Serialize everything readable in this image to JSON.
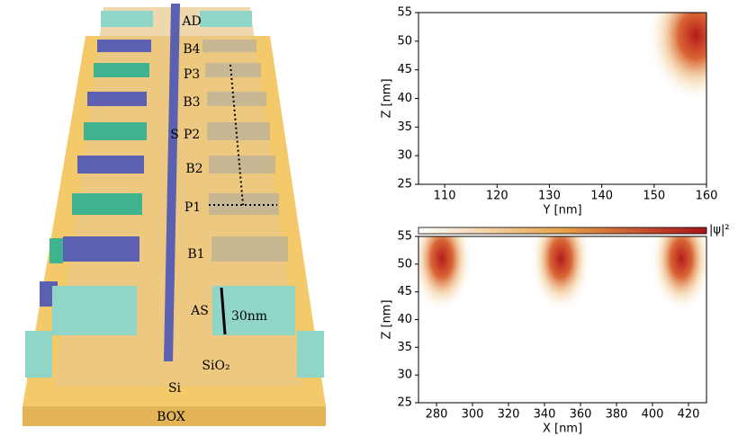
{
  "diagram": {
    "labels": [
      "AD",
      "B4",
      "P3",
      "B3",
      "S",
      "P2",
      "B2",
      "P1",
      "B1",
      "AS",
      "30nm",
      "SiO₂",
      "Si",
      "BOX"
    ]
  },
  "chart_data": [
    {
      "type": "heatmap",
      "xlabel": "Y [nm]",
      "ylabel": "Z [nm]",
      "xlim": [
        105,
        160
      ],
      "ylim": [
        25,
        55
      ],
      "xticks": [
        110,
        120,
        130,
        140,
        150,
        160
      ],
      "yticks": [
        25,
        30,
        35,
        40,
        45,
        50,
        55
      ],
      "peaks": {
        "x": [
          158
        ],
        "y": [
          51
        ]
      }
    },
    {
      "type": "heatmap",
      "xlabel": "X [nm]",
      "ylabel": "Z [nm]",
      "xlim": [
        270,
        430
      ],
      "ylim": [
        25,
        55
      ],
      "xticks": [
        280,
        300,
        320,
        340,
        360,
        380,
        400,
        420
      ],
      "yticks": [
        25,
        30,
        35,
        40,
        45,
        50,
        55
      ],
      "peaks": {
        "x": [
          283,
          349,
          416
        ],
        "y": [
          51,
          51,
          51
        ]
      },
      "colorbar_label": "|ψ|²"
    }
  ]
}
